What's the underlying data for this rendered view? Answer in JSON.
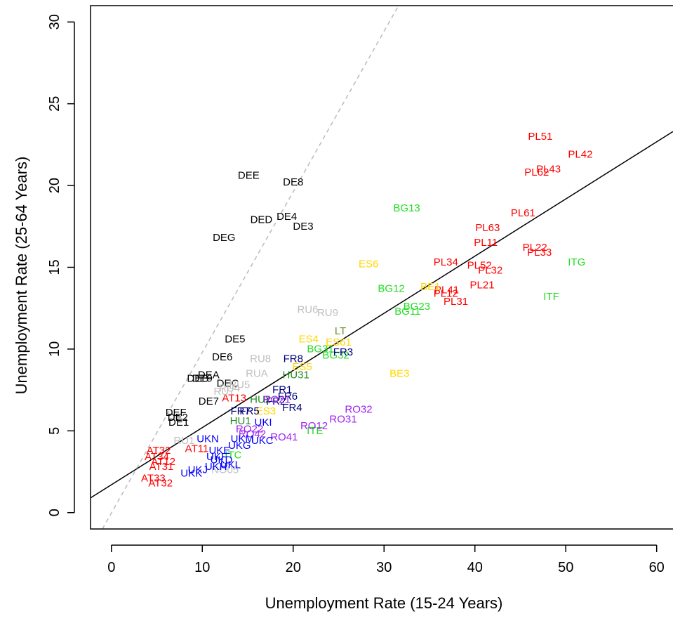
{
  "chart_data": {
    "type": "scatter",
    "title": "",
    "xlabel": "Unemployment Rate (15-24 Years)",
    "ylabel": "Unemployment Rate (25-64 Years)",
    "xlim": [
      -2.3,
      61.8
    ],
    "ylim": [
      -1.0,
      31.0
    ],
    "xticks": [
      "0",
      "10",
      "20",
      "30",
      "40",
      "50",
      "60"
    ],
    "yticks": [
      "0",
      "5",
      "10",
      "15",
      "20",
      "25",
      "30"
    ],
    "grid": false,
    "box": "left-bottom-top-open-right",
    "lines": [
      {
        "style": "solid",
        "color": "#000000",
        "x": [
          -2.3,
          61.8
        ],
        "y": [
          0.9,
          23.3
        ]
      },
      {
        "style": "dashed",
        "color": "#bbbbbb",
        "x": [
          -1.0,
          31.6
        ],
        "y": [
          -1.0,
          31.0
        ]
      }
    ],
    "colors": {
      "DE": "#000000",
      "PL": "#ff0000",
      "AT": "#ff0000",
      "BG": "#22dd22",
      "ES": "#ffd700",
      "BE": "#ffd700",
      "RU": "#c0c0c0",
      "FR": "#000080",
      "HU": "#228b22",
      "RO": "#a020f0",
      "UK": "#0000ff",
      "LT": "#6b8e23",
      "IT": "#22dd22"
    },
    "points": [
      {
        "label": "DEE",
        "x": 15.1,
        "y": 20.6,
        "color": "#000000"
      },
      {
        "label": "DE8",
        "x": 20.0,
        "y": 20.2,
        "color": "#000000"
      },
      {
        "label": "DED",
        "x": 16.5,
        "y": 17.9,
        "color": "#000000"
      },
      {
        "label": "DE4",
        "x": 19.3,
        "y": 18.1,
        "color": "#000000"
      },
      {
        "label": "DE3",
        "x": 21.1,
        "y": 17.5,
        "color": "#000000"
      },
      {
        "label": "DEG",
        "x": 12.4,
        "y": 16.8,
        "color": "#000000"
      },
      {
        "label": "DE5",
        "x": 13.6,
        "y": 10.6,
        "color": "#000000"
      },
      {
        "label": "DE6",
        "x": 12.2,
        "y": 9.5,
        "color": "#000000"
      },
      {
        "label": "DEA",
        "x": 10.7,
        "y": 8.4,
        "color": "#000000"
      },
      {
        "label": "DEB",
        "x": 9.5,
        "y": 8.2,
        "color": "#000000"
      },
      {
        "label": "DE9",
        "x": 10.0,
        "y": 8.2,
        "color": "#000000"
      },
      {
        "label": "DEC",
        "x": 12.8,
        "y": 7.9,
        "color": "#000000"
      },
      {
        "label": "DE7",
        "x": 10.7,
        "y": 6.8,
        "color": "#000000"
      },
      {
        "label": "DEF",
        "x": 7.1,
        "y": 6.1,
        "color": "#000000"
      },
      {
        "label": "DE2",
        "x": 7.3,
        "y": 5.8,
        "color": "#000000"
      },
      {
        "label": "DE1",
        "x": 7.4,
        "y": 5.5,
        "color": "#000000"
      },
      {
        "label": "PL51",
        "x": 47.2,
        "y": 23.0,
        "color": "#ff0000"
      },
      {
        "label": "PL42",
        "x": 51.6,
        "y": 21.9,
        "color": "#ff0000"
      },
      {
        "label": "PL43",
        "x": 48.1,
        "y": 21.0,
        "color": "#ff0000"
      },
      {
        "label": "PL62",
        "x": 46.8,
        "y": 20.8,
        "color": "#ff0000"
      },
      {
        "label": "PL61",
        "x": 45.3,
        "y": 18.3,
        "color": "#ff0000"
      },
      {
        "label": "PL63",
        "x": 41.4,
        "y": 17.4,
        "color": "#ff0000"
      },
      {
        "label": "PL11",
        "x": 41.2,
        "y": 16.5,
        "color": "#ff0000"
      },
      {
        "label": "PL22",
        "x": 46.6,
        "y": 16.2,
        "color": "#ff0000"
      },
      {
        "label": "PL33",
        "x": 47.1,
        "y": 15.9,
        "color": "#ff0000"
      },
      {
        "label": "PL34",
        "x": 36.8,
        "y": 15.3,
        "color": "#ff0000"
      },
      {
        "label": "PL52",
        "x": 40.5,
        "y": 15.1,
        "color": "#ff0000"
      },
      {
        "label": "PL32",
        "x": 41.7,
        "y": 14.8,
        "color": "#ff0000"
      },
      {
        "label": "PL21",
        "x": 40.8,
        "y": 13.9,
        "color": "#ff0000"
      },
      {
        "label": "PL41",
        "x": 36.9,
        "y": 13.6,
        "color": "#ff0000"
      },
      {
        "label": "PL12",
        "x": 36.8,
        "y": 13.4,
        "color": "#ff0000"
      },
      {
        "label": "PL31",
        "x": 37.9,
        "y": 12.9,
        "color": "#ff0000"
      },
      {
        "label": "AT13",
        "x": 13.5,
        "y": 7.0,
        "color": "#ff0000"
      },
      {
        "label": "AT32",
        "x": 5.2,
        "y": 3.8,
        "color": "#ff0000"
      },
      {
        "label": "AT34",
        "x": 5.0,
        "y": 3.4,
        "color": "#ff0000"
      },
      {
        "label": "AT12",
        "x": 5.7,
        "y": 3.1,
        "color": "#ff0000"
      },
      {
        "label": "AT31",
        "x": 5.5,
        "y": 2.8,
        "color": "#ff0000"
      },
      {
        "label": "AT33",
        "x": 4.6,
        "y": 2.1,
        "color": "#ff0000"
      },
      {
        "label": "AT32",
        "x": 5.4,
        "y": 1.8,
        "color": "#ff0000"
      },
      {
        "label": "AT11",
        "x": 9.4,
        "y": 3.9,
        "color": "#ff0000"
      },
      {
        "label": "BG13",
        "x": 32.5,
        "y": 18.6,
        "color": "#22dd22"
      },
      {
        "label": "BG12",
        "x": 30.8,
        "y": 13.7,
        "color": "#22dd22"
      },
      {
        "label": "BG23",
        "x": 33.6,
        "y": 12.6,
        "color": "#22dd22"
      },
      {
        "label": "BG11",
        "x": 32.6,
        "y": 12.3,
        "color": "#22dd22"
      },
      {
        "label": "BG31",
        "x": 23.0,
        "y": 10.0,
        "color": "#22dd22"
      },
      {
        "label": "BG32",
        "x": 24.7,
        "y": 9.6,
        "color": "#22dd22"
      },
      {
        "label": "ITG",
        "x": 51.2,
        "y": 15.3,
        "color": "#22dd22"
      },
      {
        "label": "ITF",
        "x": 48.4,
        "y": 13.2,
        "color": "#22dd22"
      },
      {
        "label": "ITE",
        "x": 22.4,
        "y": 5.0,
        "color": "#22dd22"
      },
      {
        "label": "ITC",
        "x": 13.4,
        "y": 3.5,
        "color": "#22dd22"
      },
      {
        "label": "ES6",
        "x": 28.3,
        "y": 15.2,
        "color": "#ffd700"
      },
      {
        "label": "BE1",
        "x": 35.1,
        "y": 13.8,
        "color": "#ffd700"
      },
      {
        "label": "ES4",
        "x": 21.7,
        "y": 10.6,
        "color": "#ffd700"
      },
      {
        "label": "ES61",
        "x": 25.0,
        "y": 10.4,
        "color": "#ffd700"
      },
      {
        "label": "BE3",
        "x": 31.7,
        "y": 8.5,
        "color": "#ffd700"
      },
      {
        "label": "ES5",
        "x": 21.0,
        "y": 8.9,
        "color": "#ffd700"
      },
      {
        "label": "ES3",
        "x": 17.0,
        "y": 6.2,
        "color": "#ffd700"
      },
      {
        "label": "RU6",
        "x": 21.6,
        "y": 12.4,
        "color": "#c0c0c0"
      },
      {
        "label": "RU9",
        "x": 23.8,
        "y": 12.2,
        "color": "#c0c0c0"
      },
      {
        "label": "RU8",
        "x": 16.4,
        "y": 9.4,
        "color": "#c0c0c0"
      },
      {
        "label": "RUA",
        "x": 16.0,
        "y": 8.5,
        "color": "#c0c0c0"
      },
      {
        "label": "RU5",
        "x": 14.1,
        "y": 7.8,
        "color": "#c0c0c0"
      },
      {
        "label": "RU4",
        "x": 13.0,
        "y": 7.6,
        "color": "#c0c0c0"
      },
      {
        "label": "RU7",
        "x": 12.4,
        "y": 7.4,
        "color": "#c0c0c0"
      },
      {
        "label": "RU1",
        "x": 8.0,
        "y": 4.4,
        "color": "#c0c0c0"
      },
      {
        "label": "NO05",
        "x": 12.5,
        "y": 2.6,
        "color": "#c0c0c0"
      },
      {
        "label": "LT",
        "x": 25.2,
        "y": 11.1,
        "color": "#6b8e23"
      },
      {
        "label": "FR8",
        "x": 20.0,
        "y": 9.4,
        "color": "#000080"
      },
      {
        "label": "FR3",
        "x": 25.5,
        "y": 9.8,
        "color": "#000080"
      },
      {
        "label": "FR1",
        "x": 18.8,
        "y": 7.5,
        "color": "#000080"
      },
      {
        "label": "FR6",
        "x": 19.4,
        "y": 7.1,
        "color": "#000080"
      },
      {
        "label": "FR2",
        "x": 18.1,
        "y": 6.8,
        "color": "#000080"
      },
      {
        "label": "FR4",
        "x": 19.9,
        "y": 6.4,
        "color": "#000080"
      },
      {
        "label": "FR7",
        "x": 14.2,
        "y": 6.2,
        "color": "#000080"
      },
      {
        "label": "FR5",
        "x": 15.2,
        "y": 6.2,
        "color": "#000080"
      },
      {
        "label": "HU31",
        "x": 20.3,
        "y": 8.4,
        "color": "#228b22"
      },
      {
        "label": "HU2",
        "x": 16.4,
        "y": 6.9,
        "color": "#228b22"
      },
      {
        "label": "HU1",
        "x": 14.2,
        "y": 5.6,
        "color": "#228b22"
      },
      {
        "label": "RO32",
        "x": 27.2,
        "y": 6.3,
        "color": "#a020f0"
      },
      {
        "label": "RO31",
        "x": 25.5,
        "y": 5.7,
        "color": "#a020f0"
      },
      {
        "label": "RO12",
        "x": 22.3,
        "y": 5.3,
        "color": "#a020f0"
      },
      {
        "label": "RO41",
        "x": 19.0,
        "y": 4.6,
        "color": "#a020f0"
      },
      {
        "label": "RO21",
        "x": 18.2,
        "y": 6.9,
        "color": "#a020f0"
      },
      {
        "label": "RO22",
        "x": 15.2,
        "y": 5.1,
        "color": "#a020f0"
      },
      {
        "label": "RO42",
        "x": 15.5,
        "y": 4.8,
        "color": "#a020f0"
      },
      {
        "label": "UKI",
        "x": 16.7,
        "y": 5.5,
        "color": "#0000ff"
      },
      {
        "label": "UKN",
        "x": 10.6,
        "y": 4.5,
        "color": "#0000ff"
      },
      {
        "label": "UKM",
        "x": 14.4,
        "y": 4.5,
        "color": "#0000ff"
      },
      {
        "label": "UKC",
        "x": 16.6,
        "y": 4.4,
        "color": "#0000ff"
      },
      {
        "label": "UKG",
        "x": 14.1,
        "y": 4.1,
        "color": "#0000ff"
      },
      {
        "label": "UKE",
        "x": 11.9,
        "y": 3.8,
        "color": "#0000ff"
      },
      {
        "label": "UKF",
        "x": 11.6,
        "y": 3.4,
        "color": "#0000ff"
      },
      {
        "label": "UKD",
        "x": 12.1,
        "y": 3.2,
        "color": "#0000ff"
      },
      {
        "label": "UKL",
        "x": 13.1,
        "y": 2.9,
        "color": "#0000ff"
      },
      {
        "label": "UKH",
        "x": 11.5,
        "y": 2.8,
        "color": "#0000ff"
      },
      {
        "label": "UKJ",
        "x": 9.5,
        "y": 2.6,
        "color": "#0000ff"
      },
      {
        "label": "UKK",
        "x": 8.8,
        "y": 2.4,
        "color": "#0000ff"
      }
    ]
  }
}
